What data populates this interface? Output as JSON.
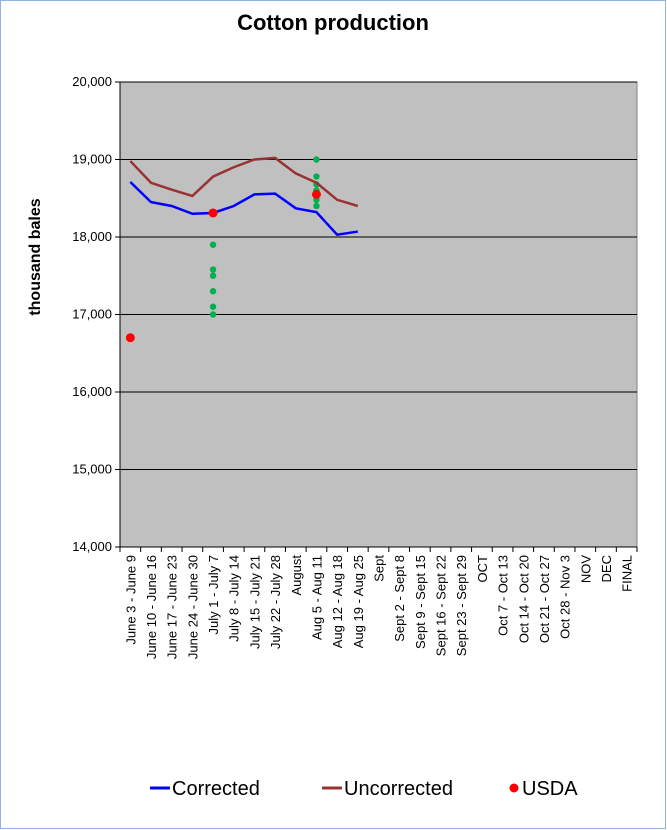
{
  "chart_data": {
    "type": "line",
    "title": "Cotton production",
    "y_label": "thousand bales",
    "categories": [
      "June 3 - June 9",
      "June 10 - June 16",
      "June 17 - June 23",
      "June 24 - June 30",
      "July 1 - July 7",
      "July 8 - July 14",
      "July 15 - July 21",
      "July 22 - July 28",
      "August",
      "Aug 5 - Aug 11",
      "Aug 12 - Aug 18",
      "Aug 19 - Aug 25",
      "Sept",
      "Sept 2 - Sept 8",
      "Sept 9 - Sept 15",
      "Sept 16 - Sept 22",
      "Sept 23 - Sept 29",
      "OCT",
      "Oct 7 - Oct 13",
      "Oct 14 - Oct 20",
      "Oct 21 - Oct 27",
      "Oct 28 - Nov 3",
      "NOV",
      "DEC",
      "FINAL"
    ],
    "series": [
      {
        "name": "Corrected",
        "color": "#0000ff",
        "style": "line",
        "values": [
          18710,
          18450,
          18400,
          18300,
          18310,
          18400,
          18550,
          18560,
          18370,
          18320,
          18030,
          18070,
          null,
          null,
          null,
          null,
          null,
          null,
          null,
          null,
          null,
          null,
          null,
          null,
          null
        ]
      },
      {
        "name": "Uncorrected",
        "color": "#993333",
        "style": "line",
        "values": [
          18980,
          18700,
          18610,
          18530,
          18780,
          18900,
          19000,
          19020,
          18820,
          18700,
          18480,
          18400,
          null,
          null,
          null,
          null,
          null,
          null,
          null,
          null,
          null,
          null,
          null,
          null,
          null
        ]
      },
      {
        "name": "USDA",
        "color": "#ff0000",
        "style": "marker",
        "values": [
          16700,
          null,
          null,
          null,
          18310,
          null,
          null,
          null,
          null,
          18550,
          null,
          null,
          null,
          null,
          null,
          null,
          null,
          null,
          null,
          null,
          null,
          null,
          null,
          null,
          null
        ]
      }
    ],
    "estimates": {
      "color": "#00b050",
      "x": [
        4,
        4,
        4,
        4,
        4,
        4,
        9,
        9,
        9,
        9,
        9,
        9
      ],
      "values": [
        17900,
        17580,
        17500,
        17300,
        17100,
        17000,
        19000,
        18780,
        18680,
        18600,
        18480,
        18400
      ]
    },
    "ylim": [
      14000,
      20000
    ],
    "yticks": [
      {
        "value": 14000,
        "label": "14,000"
      },
      {
        "value": 15000,
        "label": "15,000"
      },
      {
        "value": 16000,
        "label": "16,000"
      },
      {
        "value": 17000,
        "label": "17,000"
      },
      {
        "value": 18000,
        "label": "18,000"
      },
      {
        "value": 19000,
        "label": "19,000"
      },
      {
        "value": 20000,
        "label": "20,000"
      }
    ],
    "grid": true,
    "legend": "bottom",
    "plot_background": "#c0c0c0"
  }
}
